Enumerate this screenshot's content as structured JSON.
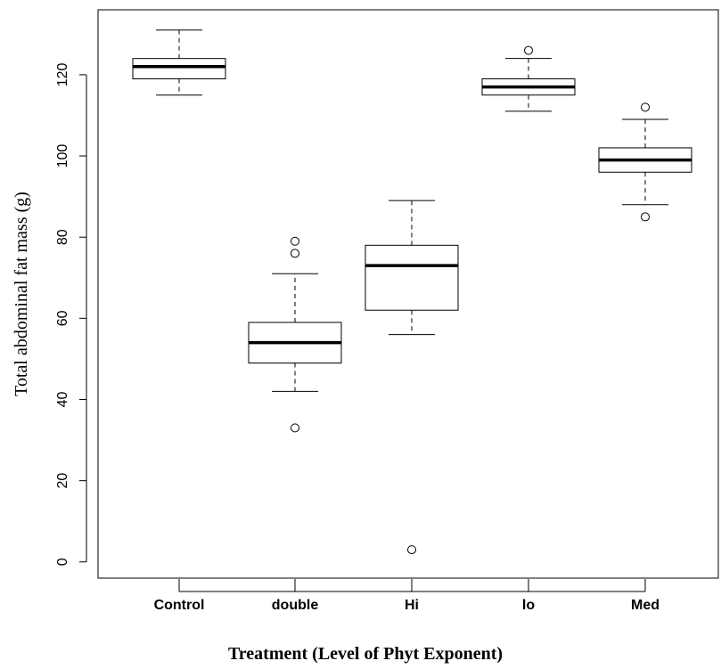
{
  "chart_data": {
    "type": "boxplot",
    "title": "",
    "xlabel": "Treatment (Level of Phyt Exponent)",
    "ylabel": "Total abdominal fat mass (g)",
    "ylim": [
      -4,
      136
    ],
    "yticks": [
      0,
      20,
      40,
      60,
      80,
      100,
      120
    ],
    "ytick_labels": [
      "0",
      "20",
      "40",
      "60",
      "80",
      "100",
      "120"
    ],
    "grid": false,
    "legend": "none",
    "categories": [
      "Control",
      "double",
      "Hi",
      "lo",
      "Med"
    ],
    "boxes": [
      {
        "category": "Control",
        "whisker_low": 115,
        "q1": 119,
        "median": 122,
        "q3": 124,
        "whisker_high": 131,
        "outliers": []
      },
      {
        "category": "double",
        "whisker_low": 42,
        "q1": 49,
        "median": 54,
        "q3": 59,
        "whisker_high": 71,
        "outliers": [
          33,
          76,
          79
        ]
      },
      {
        "category": "Hi",
        "whisker_low": 56,
        "q1": 62,
        "median": 73,
        "q3": 78,
        "whisker_high": 89,
        "outliers": [
          3
        ]
      },
      {
        "category": "lo",
        "whisker_low": 111,
        "q1": 115,
        "median": 117,
        "q3": 119,
        "whisker_high": 124,
        "outliers": [
          126
        ]
      },
      {
        "category": "Med",
        "whisker_low": 88,
        "q1": 96,
        "median": 99,
        "q3": 102,
        "whisker_high": 109,
        "outliers": [
          85,
          112
        ]
      }
    ]
  }
}
